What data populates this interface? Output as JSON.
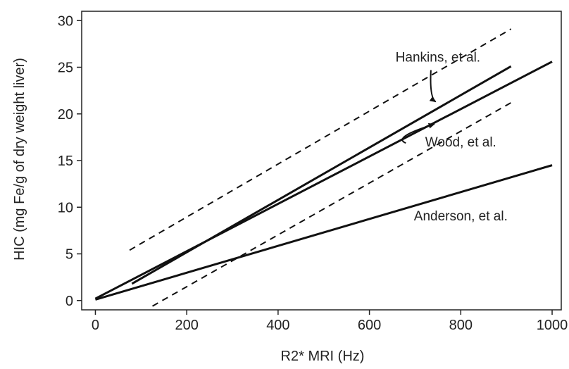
{
  "chart_data": {
    "type": "line",
    "xlabel": "R2* MRI (Hz)",
    "ylabel": "HIC (mg Fe/g of dry weight liver)",
    "xlim": [
      -30,
      1020
    ],
    "ylim": [
      -1,
      31
    ],
    "xticks": [
      0,
      200,
      400,
      600,
      800,
      1000
    ],
    "yticks": [
      0,
      5,
      10,
      15,
      20,
      25,
      30
    ],
    "grid": false,
    "series": [
      {
        "name": "Hankins, et al.",
        "style": "solid",
        "x": [
          80,
          910
        ],
        "y": [
          1.8,
          25.1
        ]
      },
      {
        "name": "Wood, et al.",
        "style": "solid",
        "x": [
          0,
          1000
        ],
        "y": [
          0.2,
          25.6
        ]
      },
      {
        "name": "Anderson, et al.",
        "style": "solid",
        "x": [
          0,
          1000
        ],
        "y": [
          0.1,
          14.5
        ]
      },
      {
        "name": "",
        "style": "dashed",
        "x": [
          75,
          910
        ],
        "y": [
          5.4,
          29.1
        ]
      },
      {
        "name": "",
        "style": "dashed",
        "x": [
          125,
          910
        ],
        "y": [
          -0.6,
          21.2
        ]
      }
    ],
    "annotations": [
      {
        "text": "Hankins, et al.",
        "x": 750,
        "y": 25.6,
        "arrow_to": [
          745,
          21.3
        ]
      },
      {
        "text": "Wood, et al.",
        "x": 800,
        "y": 16.5,
        "arrow_to": [
          742,
          18.9
        ]
      },
      {
        "text": "Anderson, et al.",
        "x": 800,
        "y": 8.6
      }
    ]
  }
}
